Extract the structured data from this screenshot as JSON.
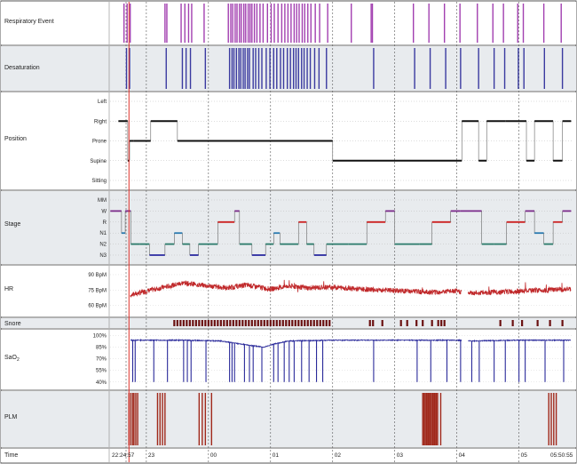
{
  "chart_data": {
    "type": "line",
    "title": "",
    "time_axis": {
      "label": "Time",
      "start_label": "22:24:57",
      "end_label": "05:50:55",
      "ticks": [
        {
          "label": "23",
          "hour": 23
        },
        {
          "label": "00",
          "hour": 24
        },
        {
          "label": "01",
          "hour": 25
        },
        {
          "label": "02",
          "hour": 26
        },
        {
          "label": "03",
          "hour": 27
        },
        {
          "label": "04",
          "hour": 28
        },
        {
          "label": "05",
          "hour": 29
        }
      ],
      "range_hours": [
        22.4158,
        29.8486
      ]
    },
    "panels": [
      {
        "key": "resp",
        "label": "Respiratory Event",
        "type": "event-raster",
        "color": "#a23fb0",
        "event_hours": [
          22.64,
          22.69,
          22.74,
          23.3,
          23.33,
          23.56,
          23.62,
          23.68,
          23.73,
          23.93,
          24.32,
          24.36,
          24.39,
          24.43,
          24.46,
          24.5,
          24.53,
          24.57,
          24.6,
          24.64,
          24.67,
          24.7,
          24.74,
          24.78,
          24.83,
          24.88,
          24.95,
          25.01,
          25.06,
          25.12,
          25.18,
          25.23,
          25.28,
          25.33,
          25.38,
          25.42,
          25.46,
          25.51,
          25.55,
          25.6,
          25.65,
          25.72,
          25.79,
          25.92,
          26.3,
          26.62,
          26.64,
          27.3,
          27.55,
          27.8,
          28.05,
          28.33,
          28.58,
          28.75,
          28.98,
          29.07,
          29.4,
          29.68
        ]
      },
      {
        "key": "desat",
        "label": "Desaturation",
        "type": "event-raster",
        "color": "#3a3aa0",
        "event_hours": [
          22.68,
          22.73,
          23.32,
          23.58,
          23.64,
          23.71,
          23.95,
          24.34,
          24.38,
          24.41,
          24.45,
          24.49,
          24.52,
          24.56,
          24.59,
          24.63,
          24.66,
          24.72,
          24.76,
          24.81,
          24.86,
          24.93,
          24.99,
          25.05,
          25.1,
          25.16,
          25.21,
          25.27,
          25.32,
          25.37,
          25.41,
          25.45,
          25.5,
          25.54,
          25.59,
          25.64,
          25.71,
          25.78,
          25.9,
          26.66,
          27.32,
          27.57,
          27.82,
          28.06,
          28.35,
          28.6,
          28.77,
          28.99,
          29.08,
          29.41,
          29.7
        ]
      },
      {
        "key": "position",
        "label": "Position",
        "type": "step",
        "levels": [
          "Left",
          "Right",
          "Prone",
          "Supine",
          "Sitting"
        ],
        "segments": [
          {
            "h0": 22.55,
            "h1": 22.7,
            "level": "Right"
          },
          {
            "h0": 22.7,
            "h1": 22.73,
            "level": "Supine"
          },
          {
            "h0": 22.73,
            "h1": 22.8,
            "level": "Prone"
          },
          {
            "h0": 22.8,
            "h1": 23.07,
            "level": "Prone"
          },
          {
            "h0": 23.07,
            "h1": 23.5,
            "level": "Right"
          },
          {
            "h0": 23.5,
            "h1": 26.0,
            "level": "Prone"
          },
          {
            "h0": 26.0,
            "h1": 28.08,
            "level": "Supine"
          },
          {
            "h0": 28.08,
            "h1": 28.35,
            "level": "Right"
          },
          {
            "h0": 28.35,
            "h1": 28.48,
            "level": "Supine"
          },
          {
            "h0": 28.48,
            "h1": 28.78,
            "level": "Right"
          },
          {
            "h0": 28.78,
            "h1": 29.12,
            "level": "Right"
          },
          {
            "h0": 29.12,
            "h1": 29.25,
            "level": "Supine"
          },
          {
            "h0": 29.25,
            "h1": 29.55,
            "level": "Right"
          },
          {
            "h0": 29.55,
            "h1": 29.7,
            "level": "Supine"
          },
          {
            "h0": 29.7,
            "h1": 29.84,
            "level": "Right"
          }
        ]
      },
      {
        "key": "stage",
        "label": "Stage",
        "type": "step",
        "levels": [
          "MM",
          "W",
          "R",
          "N1",
          "N2",
          "N3"
        ],
        "level_colors": {
          "MM": "#7a2a8a",
          "W": "#7a2a8a",
          "R": "#cc2222",
          "N1": "#2a7ab0",
          "N2": "#2a7a6a",
          "N3": "#2a2aa0"
        },
        "segments": [
          {
            "h0": 22.42,
            "h1": 22.6,
            "level": "W"
          },
          {
            "h0": 22.6,
            "h1": 22.66,
            "level": "N1"
          },
          {
            "h0": 22.66,
            "h1": 22.75,
            "level": "W"
          },
          {
            "h0": 22.75,
            "h1": 22.9,
            "level": "N2"
          },
          {
            "h0": 22.9,
            "h1": 23.05,
            "level": "N2"
          },
          {
            "h0": 23.05,
            "h1": 23.3,
            "level": "N3"
          },
          {
            "h0": 23.3,
            "h1": 23.45,
            "level": "N2"
          },
          {
            "h0": 23.45,
            "h1": 23.58,
            "level": "N1"
          },
          {
            "h0": 23.58,
            "h1": 23.7,
            "level": "N2"
          },
          {
            "h0": 23.7,
            "h1": 23.84,
            "level": "N3"
          },
          {
            "h0": 23.84,
            "h1": 24.15,
            "level": "N2"
          },
          {
            "h0": 24.15,
            "h1": 24.42,
            "level": "R"
          },
          {
            "h0": 24.42,
            "h1": 24.5,
            "level": "W"
          },
          {
            "h0": 24.5,
            "h1": 24.7,
            "level": "N2"
          },
          {
            "h0": 24.7,
            "h1": 24.92,
            "level": "N3"
          },
          {
            "h0": 24.92,
            "h1": 25.05,
            "level": "N2"
          },
          {
            "h0": 25.05,
            "h1": 25.15,
            "level": "N1"
          },
          {
            "h0": 25.15,
            "h1": 25.45,
            "level": "N2"
          },
          {
            "h0": 25.45,
            "h1": 25.58,
            "level": "R"
          },
          {
            "h0": 25.58,
            "h1": 25.7,
            "level": "N2"
          },
          {
            "h0": 25.7,
            "h1": 25.9,
            "level": "N3"
          },
          {
            "h0": 25.9,
            "h1": 26.25,
            "level": "N2"
          },
          {
            "h0": 26.25,
            "h1": 26.55,
            "level": "N2"
          },
          {
            "h0": 26.55,
            "h1": 26.85,
            "level": "R"
          },
          {
            "h0": 26.85,
            "h1": 27.0,
            "level": "W"
          },
          {
            "h0": 27.0,
            "h1": 27.4,
            "level": "N2"
          },
          {
            "h0": 27.4,
            "h1": 27.6,
            "level": "N2"
          },
          {
            "h0": 27.6,
            "h1": 27.9,
            "level": "R"
          },
          {
            "h0": 27.9,
            "h1": 28.05,
            "level": "W"
          },
          {
            "h0": 28.05,
            "h1": 28.4,
            "level": "W"
          },
          {
            "h0": 28.4,
            "h1": 28.6,
            "level": "N2"
          },
          {
            "h0": 28.6,
            "h1": 28.8,
            "level": "N2"
          },
          {
            "h0": 28.8,
            "h1": 29.1,
            "level": "R"
          },
          {
            "h0": 29.1,
            "h1": 29.25,
            "level": "W"
          },
          {
            "h0": 29.25,
            "h1": 29.4,
            "level": "N1"
          },
          {
            "h0": 29.4,
            "h1": 29.55,
            "level": "N2"
          },
          {
            "h0": 29.55,
            "h1": 29.7,
            "level": "R"
          },
          {
            "h0": 29.7,
            "h1": 29.84,
            "level": "W"
          }
        ]
      },
      {
        "key": "hr",
        "label": "HR",
        "type": "line",
        "color": "#c0282a",
        "y_ticks": [
          "90 BpM",
          "75 BpM",
          "60 BpM"
        ],
        "y_tick_values": [
          90,
          75,
          60
        ],
        "ylim": [
          52,
          96
        ],
        "gaps_hours": [
          [
            22.42,
            22.74
          ],
          [
            28.08,
            28.18
          ]
        ],
        "trend": [
          {
            "h": 22.74,
            "v": 70
          },
          {
            "h": 23.0,
            "v": 74
          },
          {
            "h": 23.3,
            "v": 78
          },
          {
            "h": 23.6,
            "v": 82
          },
          {
            "h": 24.0,
            "v": 79
          },
          {
            "h": 24.3,
            "v": 77
          },
          {
            "h": 24.6,
            "v": 80
          },
          {
            "h": 25.0,
            "v": 76
          },
          {
            "h": 25.3,
            "v": 79
          },
          {
            "h": 25.6,
            "v": 77
          },
          {
            "h": 26.0,
            "v": 78
          },
          {
            "h": 26.4,
            "v": 76
          },
          {
            "h": 26.8,
            "v": 75
          },
          {
            "h": 27.2,
            "v": 74
          },
          {
            "h": 27.6,
            "v": 73
          },
          {
            "h": 28.0,
            "v": 74
          },
          {
            "h": 28.2,
            "v": 72
          },
          {
            "h": 28.6,
            "v": 73
          },
          {
            "h": 29.0,
            "v": 74
          },
          {
            "h": 29.4,
            "v": 75
          },
          {
            "h": 29.84,
            "v": 76
          }
        ]
      },
      {
        "key": "snore",
        "label": "Snore",
        "type": "event-raster",
        "color": "#6a1010",
        "event_hours": [
          23.45,
          23.5,
          23.55,
          23.6,
          23.65,
          23.7,
          23.75,
          23.8,
          23.85,
          23.9,
          23.95,
          24.0,
          24.05,
          24.1,
          24.15,
          24.2,
          24.25,
          24.3,
          24.35,
          24.4,
          24.45,
          24.5,
          24.55,
          24.6,
          24.65,
          24.7,
          24.75,
          24.8,
          24.85,
          24.9,
          24.95,
          25.0,
          25.05,
          25.1,
          25.15,
          25.2,
          25.25,
          25.3,
          25.35,
          25.4,
          25.45,
          25.5,
          25.55,
          25.6,
          25.65,
          25.7,
          25.75,
          25.8,
          25.85,
          25.9,
          25.95,
          26.6,
          26.65,
          26.8,
          27.1,
          27.2,
          27.35,
          27.45,
          27.6,
          27.7,
          27.75,
          27.8,
          28.7,
          28.9,
          29.05,
          29.3,
          29.5,
          29.7
        ]
      },
      {
        "key": "sao2",
        "label": "SaO2",
        "type": "line",
        "color": "#2a2a9a",
        "y_ticks": [
          "100%",
          "85%",
          "70%",
          "55%",
          "40%"
        ],
        "y_tick_values": [
          100,
          85,
          70,
          55,
          40
        ],
        "ylim": [
          34,
          104
        ],
        "gaps_hours": [
          [
            22.42,
            22.74
          ],
          [
            28.08,
            28.18
          ]
        ],
        "trend": [
          {
            "h": 22.74,
            "v": 94
          },
          {
            "h": 23.0,
            "v": 94
          },
          {
            "h": 23.6,
            "v": 94
          },
          {
            "h": 24.2,
            "v": 93
          },
          {
            "h": 24.6,
            "v": 88
          },
          {
            "h": 24.9,
            "v": 85
          },
          {
            "h": 25.05,
            "v": 89
          },
          {
            "h": 25.3,
            "v": 93
          },
          {
            "h": 26.0,
            "v": 94
          },
          {
            "h": 27.0,
            "v": 94
          },
          {
            "h": 28.0,
            "v": 94
          },
          {
            "h": 28.2,
            "v": 93
          },
          {
            "h": 29.0,
            "v": 94
          },
          {
            "h": 29.84,
            "v": 94
          }
        ],
        "dips_hours": [
          22.78,
          22.82,
          23.12,
          23.34,
          23.6,
          23.66,
          23.72,
          23.96,
          24.34,
          24.38,
          24.42,
          24.58,
          24.66,
          24.72,
          24.86,
          25.05,
          25.12,
          25.22,
          25.3,
          25.38,
          25.5,
          25.62,
          25.74,
          25.84,
          26.66,
          27.36,
          27.58,
          27.84,
          28.06,
          28.24,
          28.36,
          28.6,
          28.78,
          29.0,
          29.1,
          29.42,
          29.72
        ]
      },
      {
        "key": "plm",
        "label": "PLM",
        "type": "event-raster",
        "color": "#a0281a",
        "event_hours": [
          22.72,
          22.75,
          22.78,
          22.8,
          22.83,
          22.86,
          23.18,
          23.22,
          23.26,
          23.3,
          23.85,
          23.9,
          23.95,
          24.05,
          27.45,
          27.47,
          27.49,
          27.51,
          27.53,
          27.55,
          27.57,
          27.59,
          27.61,
          27.63,
          27.65,
          27.67,
          27.69,
          27.74,
          29.48,
          29.52,
          29.56,
          29.6
        ]
      }
    ]
  }
}
